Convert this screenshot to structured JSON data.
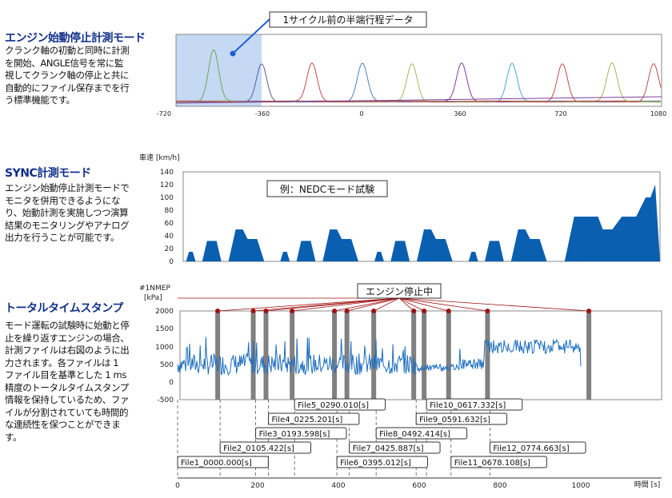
{
  "sections": [
    {
      "title": "エンジン始動停止計測モード",
      "desc": [
        "クランク軸の初動と同時に計測",
        "を開始、ANGLE信号を常に監",
        "視してクランク軸の停止と共に",
        "自動的にファイル保存までを行",
        "う標準機能です。"
      ]
    },
    {
      "title": "SYNC計測モード",
      "desc": [
        "エンジン始動停止計測モードで",
        "モニタを併用できるようにな",
        "り、始動計測を実施しつつ演算",
        "結果のモニタリングやアナログ",
        "出力を行うことが可能です。"
      ]
    },
    {
      "title": "トータルタイムスタンプ",
      "desc": [
        "モード運転の試験時に始動と停",
        "止を繰り返すエンジンの場合、",
        "計測ファイルは右図のように出",
        "力されます。各ファイルは 1",
        "ファイル目を基準とした 1 ms",
        "精度のトータルタイムスタンプ",
        "情報を保持しているため、ファ",
        "イルが分割されていても時間的",
        "な連続性を保つことができま",
        "す。"
      ]
    }
  ],
  "chart1": {
    "callout": "1サイクル前の半端行程データ",
    "x_ticks": [
      "-720",
      "-360",
      "0",
      "360",
      "720",
      "1080"
    ]
  },
  "chart2": {
    "ylabel": "車速 [km/h]",
    "y_ticks": [
      "140",
      "120",
      "100",
      "80",
      "60",
      "40",
      "20",
      "0"
    ],
    "annotation": "例：NEDCモード試験"
  },
  "chart3": {
    "ylabel_line1": "#1NMEP",
    "ylabel_line2": "[kPa]",
    "y_ticks": [
      "2000",
      "1500",
      "1000",
      "500",
      "0",
      "-500"
    ],
    "stop_label": "エンジン停止中",
    "files": [
      {
        "label": "File1_0000.000[s]",
        "t": 0
      },
      {
        "label": "File2_0105.422[s]",
        "t": 105.422
      },
      {
        "label": "File3_0193.598[s]",
        "t": 193.598
      },
      {
        "label": "File4_0225.201[s]",
        "t": 225.201
      },
      {
        "label": "File5_0290.010[s]",
        "t": 290.01
      },
      {
        "label": "File6_0395.012[s]",
        "t": 395.012
      },
      {
        "label": "File7_0425.887[s]",
        "t": 425.887
      },
      {
        "label": "File8_0492.414[s]",
        "t": 492.414
      },
      {
        "label": "File9_0591.632[s]",
        "t": 591.632
      },
      {
        "label": "File10_0617.332[s]",
        "t": 617.332
      },
      {
        "label": "File11_0678.108[s]",
        "t": 678.108
      },
      {
        "label": "File12_0774.663[s]",
        "t": 774.663
      }
    ],
    "time_ticks": [
      "0",
      "200",
      "400",
      "600",
      "800",
      "1000"
    ],
    "time_label": "時間 [s]"
  },
  "colors": {
    "title": "#12308a",
    "area": "#0a5fb0",
    "line": "#1f6fc0",
    "stop_marker": "#a01010",
    "highlight": "#c5d9f5"
  }
}
